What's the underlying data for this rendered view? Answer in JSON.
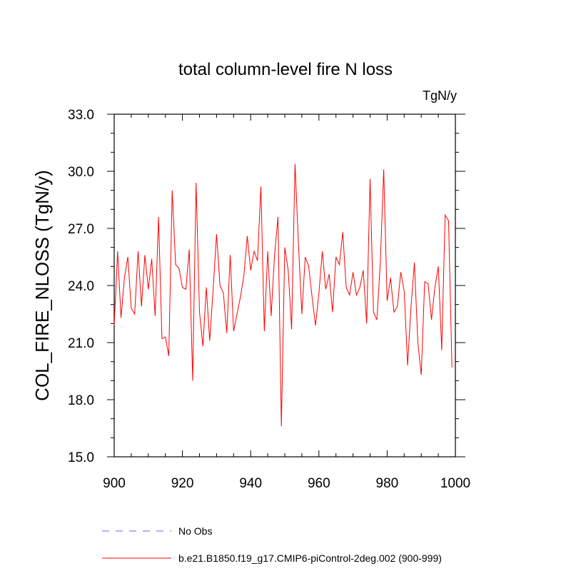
{
  "chart_data": {
    "type": "line",
    "title": "total column-level fire N loss",
    "units_label": "TgN/y",
    "xlabel": "",
    "ylabel": "COL_FIRE_NLOSS  (TgN/y)",
    "xlim": [
      900,
      1000
    ],
    "ylim": [
      15,
      33
    ],
    "x_ticks": [
      900,
      920,
      940,
      960,
      980,
      1000
    ],
    "y_ticks": [
      15.0,
      18.0,
      21.0,
      24.0,
      27.0,
      30.0,
      33.0
    ],
    "x_tick_labels": [
      "900",
      "920",
      "940",
      "960",
      "980",
      "1000"
    ],
    "y_tick_labels": [
      "15.0",
      "18.0",
      "21.0",
      "24.0",
      "27.0",
      "30.0",
      "33.0"
    ],
    "series": [
      {
        "name": "No Obs",
        "color": "#6666ff",
        "style": "dashed",
        "x": [],
        "values": []
      },
      {
        "name": "b.e21.B1850.f19_g17.CMIP6-piControl-2deg.002 (900-999)",
        "color": "#ff0000",
        "style": "solid",
        "x_start": 900,
        "values": [
          21.9,
          25.8,
          22.3,
          24.4,
          25.5,
          22.8,
          22.5,
          25.8,
          22.9,
          25.6,
          23.8,
          25.4,
          22.4,
          27.6,
          21.2,
          21.3,
          20.3,
          29.0,
          25.1,
          24.9,
          23.9,
          23.8,
          25.9,
          19.0,
          29.4,
          22.6,
          20.8,
          23.9,
          21.1,
          23.8,
          26.7,
          24.0,
          23.6,
          21.5,
          25.6,
          21.6,
          22.5,
          23.4,
          24.5,
          26.6,
          24.8,
          25.8,
          25.3,
          29.2,
          21.6,
          25.8,
          22.4,
          25.6,
          27.6,
          16.6,
          26.0,
          24.8,
          21.7,
          30.4,
          26.2,
          22.5,
          25.5,
          25.0,
          23.4,
          21.9,
          23.6,
          25.8,
          23.8,
          24.6,
          22.6,
          25.5,
          25.1,
          26.8,
          23.9,
          23.5,
          24.7,
          23.5,
          23.9,
          24.8,
          22.0,
          29.6,
          22.6,
          22.2,
          25.2,
          30.1,
          23.2,
          24.4,
          22.6,
          22.9,
          24.7,
          23.7,
          19.8,
          22.9,
          25.2,
          21.0,
          19.3,
          24.2,
          24.1,
          22.2,
          23.9,
          25.0,
          20.6,
          27.7,
          27.4,
          19.7
        ]
      }
    ]
  },
  "legend": {
    "items": [
      {
        "label": "No Obs",
        "color": "#6666ff",
        "style": "dashed"
      },
      {
        "label": "b.e21.B1850.f19_g17.CMIP6-piControl-2deg.002 (900-999)",
        "color": "#ff0000",
        "style": "solid"
      }
    ]
  }
}
